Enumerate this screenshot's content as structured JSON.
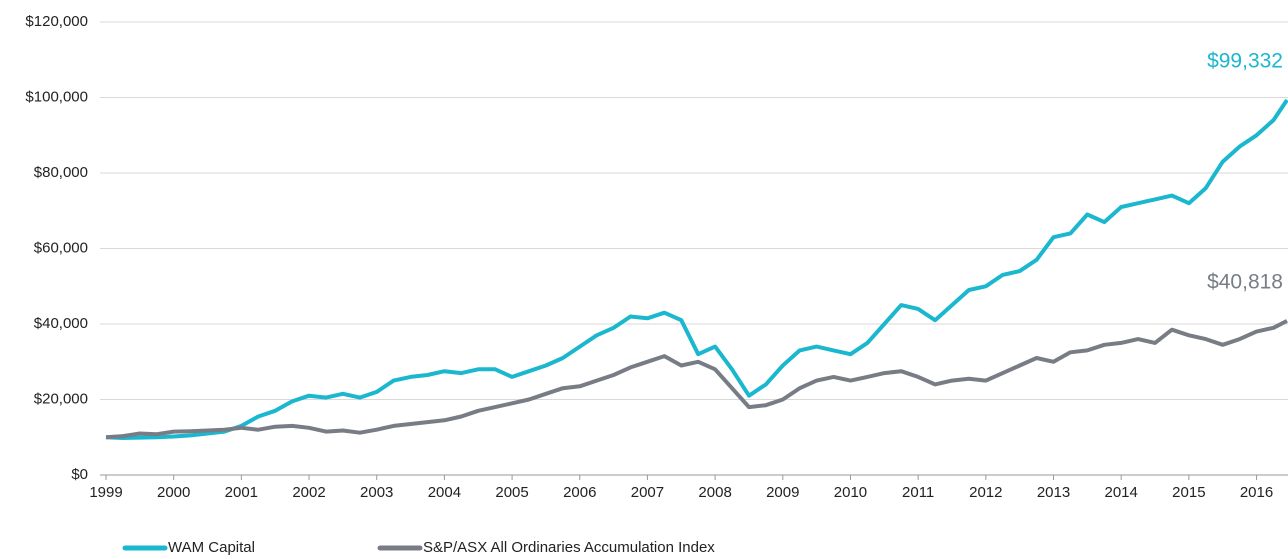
{
  "chart_data": {
    "type": "line",
    "x": [
      1999,
      1999.25,
      1999.5,
      1999.75,
      2000,
      2000.25,
      2000.5,
      2000.75,
      2001,
      2001.25,
      2001.5,
      2001.75,
      2002,
      2002.25,
      2002.5,
      2002.75,
      2003,
      2003.25,
      2003.5,
      2003.75,
      2004,
      2004.25,
      2004.5,
      2004.75,
      2005,
      2005.25,
      2005.5,
      2005.75,
      2006,
      2006.25,
      2006.5,
      2006.75,
      2007,
      2007.25,
      2007.5,
      2007.75,
      2008,
      2008.25,
      2008.5,
      2008.75,
      2009,
      2009.25,
      2009.5,
      2009.75,
      2010,
      2010.25,
      2010.5,
      2010.75,
      2011,
      2011.25,
      2011.5,
      2011.75,
      2012,
      2012.25,
      2012.5,
      2012.75,
      2013,
      2013.25,
      2013.5,
      2013.75,
      2014,
      2014.25,
      2014.5,
      2014.75,
      2015,
      2015.25,
      2015.5,
      2015.75,
      2016,
      2016.25,
      2016.45
    ],
    "series": [
      {
        "name": "WAM Capital",
        "color": "#1bb7cf",
        "end_label": "$99,332",
        "values": [
          10000,
          9800,
          9900,
          10000,
          10200,
          10500,
          11000,
          11500,
          13000,
          15500,
          17000,
          19500,
          21000,
          20500,
          21500,
          20500,
          22000,
          25000,
          26000,
          26500,
          27500,
          27000,
          28000,
          28000,
          26000,
          27500,
          29000,
          31000,
          34000,
          37000,
          39000,
          42000,
          41500,
          43000,
          41000,
          32000,
          34000,
          28000,
          21000,
          24000,
          29000,
          33000,
          34000,
          33000,
          32000,
          35000,
          40000,
          45000,
          44000,
          41000,
          45000,
          49000,
          50000,
          53000,
          54000,
          57000,
          63000,
          64000,
          69000,
          67000,
          71000,
          72000,
          73000,
          74000,
          72000,
          76000,
          83000,
          87000,
          90000,
          94000,
          99332
        ]
      },
      {
        "name": "S&P/ASX All Ordinaries Accumulation Index",
        "color": "#787d85",
        "end_label": "$40,818",
        "values": [
          10000,
          10300,
          11000,
          10800,
          11500,
          11600,
          11800,
          12000,
          12500,
          12000,
          12800,
          13000,
          12500,
          11500,
          11800,
          11200,
          12000,
          13000,
          13500,
          14000,
          14500,
          15500,
          17000,
          18000,
          19000,
          20000,
          21500,
          23000,
          23500,
          25000,
          26500,
          28500,
          30000,
          31500,
          29000,
          30000,
          28000,
          23000,
          18000,
          18500,
          20000,
          23000,
          25000,
          26000,
          25000,
          26000,
          27000,
          27500,
          26000,
          24000,
          25000,
          25500,
          25000,
          27000,
          29000,
          31000,
          30000,
          32500,
          33000,
          34500,
          35000,
          36000,
          35000,
          38500,
          37000,
          36000,
          34500,
          36000,
          38000,
          39000,
          40818
        ]
      }
    ],
    "xlim": [
      1999,
      2016.45
    ],
    "xticks": [
      1999,
      2000,
      2001,
      2002,
      2003,
      2004,
      2005,
      2006,
      2007,
      2008,
      2009,
      2010,
      2011,
      2012,
      2013,
      2014,
      2015,
      2016
    ],
    "ylim": [
      0,
      120000
    ],
    "yticks": [
      {
        "value": 0,
        "label": "$0"
      },
      {
        "value": 20000,
        "label": "$20,000"
      },
      {
        "value": 40000,
        "label": "$40,000"
      },
      {
        "value": 60000,
        "label": "$60,000"
      },
      {
        "value": 80000,
        "label": "$80,000"
      },
      {
        "value": 100000,
        "label": "$100,000"
      },
      {
        "value": 120000,
        "label": "$120,000"
      }
    ],
    "grid": true,
    "legend": "bottom"
  }
}
